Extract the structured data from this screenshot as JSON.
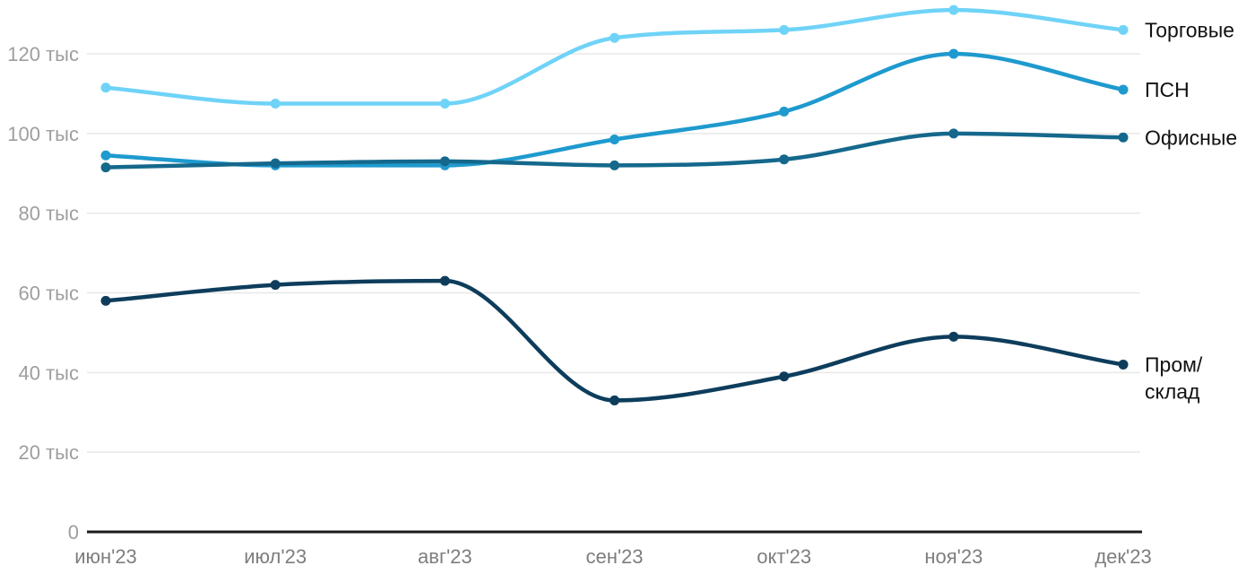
{
  "chart_data": {
    "type": "line",
    "x": [
      "июн'23",
      "июл'23",
      "авг'23",
      "сен'23",
      "окт'23",
      "ноя'23",
      "дек'23"
    ],
    "series": [
      {
        "name": "Торговые",
        "color": "#6fd3f7",
        "values": [
          111.5,
          107.5,
          107.5,
          124,
          126,
          131,
          126
        ],
        "label_lines": [
          "Торговые"
        ]
      },
      {
        "name": "ПСН",
        "color": "#1e9ace",
        "values": [
          94.5,
          92,
          92,
          98.5,
          105.5,
          120,
          111
        ],
        "label_lines": [
          "ПСН"
        ]
      },
      {
        "name": "Офисные",
        "color": "#15688c",
        "values": [
          91.5,
          92.5,
          93,
          92,
          93.5,
          100,
          99
        ],
        "label_lines": [
          "Офисные"
        ]
      },
      {
        "name": "Пром/склад",
        "color": "#0e3d5c",
        "values": [
          58,
          62,
          63,
          33,
          39,
          49,
          42
        ],
        "label_lines": [
          "Пром/",
          "склад"
        ]
      }
    ],
    "y_ticks": [
      {
        "value": 0,
        "label": "0"
      },
      {
        "value": 20,
        "label": "20 тыс"
      },
      {
        "value": 40,
        "label": "40 тыс"
      },
      {
        "value": 60,
        "label": "60 тыс"
      },
      {
        "value": 80,
        "label": "80 тыс"
      },
      {
        "value": 100,
        "label": "100 тыс"
      },
      {
        "value": 120,
        "label": "120 тыс"
      }
    ],
    "ylim": [
      0,
      134
    ],
    "grid": true,
    "legend_position": "right-of-line-ends",
    "title": "",
    "xlabel": "",
    "ylabel": ""
  },
  "colors": {
    "background": "#ffffff",
    "gridline": "#e8e8e8",
    "axis": "#1a1a1a",
    "y_tick_label": "#9e9e9e",
    "x_tick_label": "#7e7e7e",
    "series_label": "#111111"
  }
}
